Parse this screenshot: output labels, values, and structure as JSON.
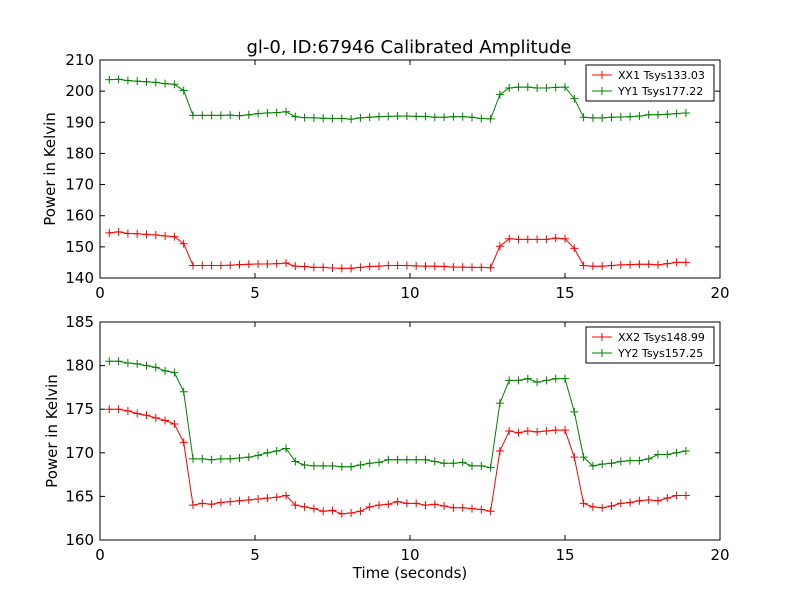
{
  "title": "gl-0, ID:67946 Calibrated Amplitude",
  "chart_data": [
    {
      "type": "line",
      "xlabel": "",
      "ylabel": "Power in Kelvin",
      "xlim": [
        0,
        20
      ],
      "ylim": [
        140,
        210
      ],
      "xticks": [
        0,
        5,
        10,
        15,
        20
      ],
      "yticks": [
        140,
        150,
        160,
        170,
        180,
        190,
        200,
        210
      ],
      "grid": false,
      "legend_position": "top-right",
      "series": [
        {
          "name": "XX1 Tsys133.03",
          "color": "#ff0000",
          "x": [
            0.3,
            0.6,
            0.9,
            1.2,
            1.5,
            1.8,
            2.1,
            2.4,
            2.7,
            3.0,
            3.3,
            3.6,
            3.9,
            4.2,
            4.5,
            4.8,
            5.1,
            5.4,
            5.7,
            6.0,
            6.3,
            6.6,
            6.9,
            7.2,
            7.5,
            7.8,
            8.1,
            8.4,
            8.7,
            9.0,
            9.3,
            9.6,
            9.9,
            10.2,
            10.5,
            10.8,
            11.1,
            11.4,
            11.7,
            12.0,
            12.3,
            12.6,
            12.9,
            13.2,
            13.5,
            13.8,
            14.1,
            14.4,
            14.7,
            15.0,
            15.3,
            15.6,
            15.9,
            16.2,
            16.5,
            16.8,
            17.1,
            17.4,
            17.7,
            18.0,
            18.3,
            18.6,
            18.9
          ],
          "y": [
            154.5,
            154.8,
            154.3,
            154.2,
            154.0,
            153.8,
            153.5,
            153.3,
            151.0,
            144.0,
            144.0,
            144.0,
            144.0,
            144.1,
            144.3,
            144.4,
            144.5,
            144.5,
            144.6,
            144.8,
            143.8,
            143.7,
            143.4,
            143.4,
            143.2,
            143.1,
            143.1,
            143.4,
            143.7,
            143.8,
            144.0,
            144.0,
            144.0,
            143.9,
            143.8,
            143.8,
            143.7,
            143.5,
            143.5,
            143.4,
            143.4,
            143.3,
            150.2,
            152.6,
            152.4,
            152.4,
            152.4,
            152.4,
            152.8,
            152.6,
            149.5,
            144.0,
            143.8,
            143.8,
            144.0,
            144.2,
            144.3,
            144.4,
            144.4,
            144.2,
            144.6,
            145.0,
            145.0
          ]
        },
        {
          "name": "YY1 Tsys177.22",
          "color": "#008000",
          "x": [
            0.3,
            0.6,
            0.9,
            1.2,
            1.5,
            1.8,
            2.1,
            2.4,
            2.7,
            3.0,
            3.3,
            3.6,
            3.9,
            4.2,
            4.5,
            4.8,
            5.1,
            5.4,
            5.7,
            6.0,
            6.3,
            6.6,
            6.9,
            7.2,
            7.5,
            7.8,
            8.1,
            8.4,
            8.7,
            9.0,
            9.3,
            9.6,
            9.9,
            10.2,
            10.5,
            10.8,
            11.1,
            11.4,
            11.7,
            12.0,
            12.3,
            12.6,
            12.9,
            13.2,
            13.5,
            13.8,
            14.1,
            14.4,
            14.7,
            15.0,
            15.3,
            15.6,
            15.9,
            16.2,
            16.5,
            16.8,
            17.1,
            17.4,
            17.7,
            18.0,
            18.3,
            18.6,
            18.9
          ],
          "y": [
            203.7,
            203.8,
            203.4,
            203.2,
            203.0,
            202.8,
            202.4,
            202.2,
            200.2,
            192.2,
            192.2,
            192.2,
            192.2,
            192.3,
            192.1,
            192.4,
            192.8,
            193.0,
            193.1,
            193.4,
            191.8,
            191.5,
            191.4,
            191.3,
            191.2,
            191.2,
            191.0,
            191.4,
            191.6,
            191.8,
            191.9,
            192.0,
            192.0,
            191.9,
            191.9,
            191.6,
            191.6,
            191.8,
            191.8,
            191.6,
            191.2,
            191.1,
            198.9,
            201.0,
            201.3,
            201.3,
            201.0,
            201.0,
            201.2,
            201.3,
            197.6,
            191.6,
            191.4,
            191.4,
            191.6,
            191.7,
            191.8,
            192.0,
            192.4,
            192.4,
            192.6,
            192.8,
            193.0
          ]
        }
      ]
    },
    {
      "type": "line",
      "xlabel": "Time (seconds)",
      "ylabel": "Power in Kelvin",
      "xlim": [
        0,
        20
      ],
      "ylim": [
        160,
        185
      ],
      "xticks": [
        0,
        5,
        10,
        15,
        20
      ],
      "yticks": [
        160,
        165,
        170,
        175,
        180,
        185
      ],
      "grid": false,
      "legend_position": "top-right",
      "series": [
        {
          "name": "XX2 Tsys148.99",
          "color": "#ff0000",
          "x": [
            0.3,
            0.6,
            0.9,
            1.2,
            1.5,
            1.8,
            2.1,
            2.4,
            2.7,
            3.0,
            3.3,
            3.6,
            3.9,
            4.2,
            4.5,
            4.8,
            5.1,
            5.4,
            5.7,
            6.0,
            6.3,
            6.6,
            6.9,
            7.2,
            7.5,
            7.8,
            8.1,
            8.4,
            8.7,
            9.0,
            9.3,
            9.6,
            9.9,
            10.2,
            10.5,
            10.8,
            11.1,
            11.4,
            11.7,
            12.0,
            12.3,
            12.6,
            12.9,
            13.2,
            13.5,
            13.8,
            14.1,
            14.4,
            14.7,
            15.0,
            15.3,
            15.6,
            15.9,
            16.2,
            16.5,
            16.8,
            17.1,
            17.4,
            17.7,
            18.0,
            18.3,
            18.6,
            18.9
          ],
          "y": [
            175.0,
            175.0,
            174.8,
            174.5,
            174.3,
            174.0,
            173.7,
            173.3,
            171.2,
            164.0,
            164.2,
            164.1,
            164.3,
            164.4,
            164.5,
            164.6,
            164.7,
            164.8,
            164.9,
            165.1,
            164.0,
            163.8,
            163.6,
            163.3,
            163.4,
            163.0,
            163.1,
            163.3,
            163.8,
            164.0,
            164.1,
            164.4,
            164.2,
            164.2,
            164.0,
            164.1,
            163.9,
            163.7,
            163.7,
            163.6,
            163.5,
            163.3,
            170.2,
            172.5,
            172.3,
            172.5,
            172.4,
            172.5,
            172.6,
            172.6,
            169.5,
            164.2,
            163.8,
            163.7,
            163.9,
            164.2,
            164.3,
            164.5,
            164.6,
            164.5,
            164.8,
            165.1,
            165.1
          ]
        },
        {
          "name": "YY2 Tsys157.25",
          "color": "#008000",
          "x": [
            0.3,
            0.6,
            0.9,
            1.2,
            1.5,
            1.8,
            2.1,
            2.4,
            2.7,
            3.0,
            3.3,
            3.6,
            3.9,
            4.2,
            4.5,
            4.8,
            5.1,
            5.4,
            5.7,
            6.0,
            6.3,
            6.6,
            6.9,
            7.2,
            7.5,
            7.8,
            8.1,
            8.4,
            8.7,
            9.0,
            9.3,
            9.6,
            9.9,
            10.2,
            10.5,
            10.8,
            11.1,
            11.4,
            11.7,
            12.0,
            12.3,
            12.6,
            12.9,
            13.2,
            13.5,
            13.8,
            14.1,
            14.4,
            14.7,
            15.0,
            15.3,
            15.6,
            15.9,
            16.2,
            16.5,
            16.8,
            17.1,
            17.4,
            17.7,
            18.0,
            18.3,
            18.6,
            18.9
          ],
          "y": [
            180.5,
            180.5,
            180.3,
            180.2,
            180.0,
            179.8,
            179.4,
            179.2,
            177.0,
            169.3,
            169.3,
            169.2,
            169.3,
            169.3,
            169.4,
            169.5,
            169.7,
            170.0,
            170.2,
            170.5,
            169.0,
            168.6,
            168.5,
            168.5,
            168.5,
            168.4,
            168.4,
            168.6,
            168.8,
            168.9,
            169.2,
            169.2,
            169.2,
            169.2,
            169.2,
            169.0,
            168.8,
            168.8,
            168.9,
            168.5,
            168.5,
            168.3,
            175.7,
            178.3,
            178.3,
            178.5,
            178.1,
            178.3,
            178.5,
            178.5,
            174.7,
            169.5,
            168.5,
            168.7,
            168.8,
            169.0,
            169.1,
            169.1,
            169.3,
            169.8,
            169.8,
            170.0,
            170.2
          ]
        }
      ]
    }
  ]
}
